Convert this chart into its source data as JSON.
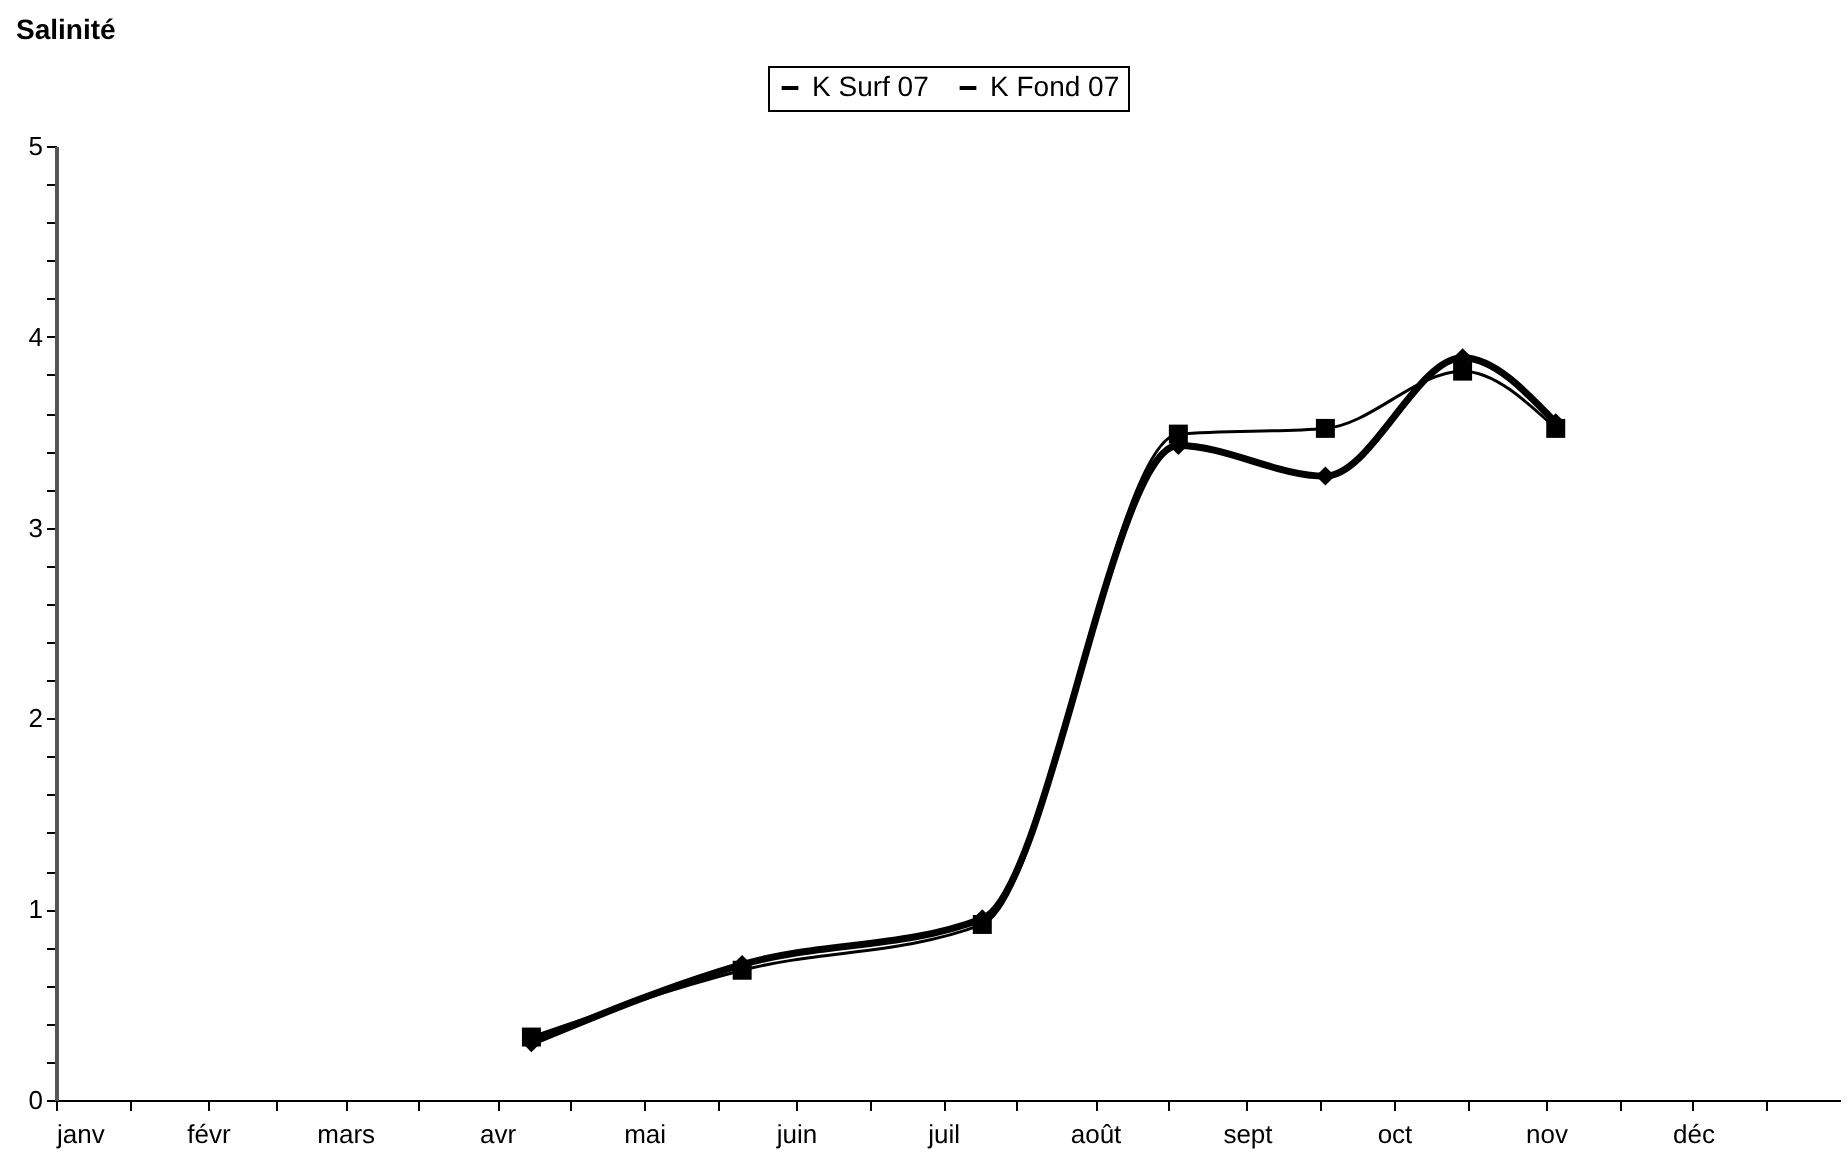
{
  "chart_data": {
    "type": "line",
    "title": "Salinité",
    "x": [
      "--04-08",
      "--05-21",
      "--07-09",
      "--08-18",
      "--09-17",
      "--10-15",
      "--11-03"
    ],
    "series": [
      {
        "name": "K Surf 07",
        "color": "#000000",
        "marker": "diamond",
        "values": [
          0.3,
          0.71,
          0.95,
          3.43,
          3.27,
          3.89,
          3.55
        ]
      },
      {
        "name": "K Fond 07",
        "color": "#000000",
        "marker": "square",
        "values": [
          0.33,
          0.68,
          0.92,
          3.49,
          3.52,
          3.82,
          3.52
        ]
      }
    ],
    "xlim": [
      "--01-01",
      "--12-31"
    ],
    "xticks": [
      {
        "value": "--01-01",
        "label": "janv"
      },
      {
        "value": "--01-16",
        "label": null
      },
      {
        "value": "--02-01",
        "label": "févr"
      },
      {
        "value": "--02-15",
        "label": null
      },
      {
        "value": "--03-01",
        "label": "mars"
      },
      {
        "value": "--03-16",
        "label": null
      },
      {
        "value": "--04-01",
        "label": "avr"
      },
      {
        "value": "--04-16",
        "label": null
      },
      {
        "value": "--05-01",
        "label": "mai"
      },
      {
        "value": "--05-16",
        "label": null
      },
      {
        "value": "--06-01",
        "label": "juin"
      },
      {
        "value": "--06-16",
        "label": null
      },
      {
        "value": "--07-01",
        "label": "juil"
      },
      {
        "value": "--07-16",
        "label": null
      },
      {
        "value": "--08-01",
        "label": "août"
      },
      {
        "value": "--08-16",
        "label": null
      },
      {
        "value": "--09-01",
        "label": "sept"
      },
      {
        "value": "--09-16",
        "label": null
      },
      {
        "value": "--10-01",
        "label": "oct"
      },
      {
        "value": "--10-16",
        "label": null
      },
      {
        "value": "--11-01",
        "label": "nov"
      },
      {
        "value": "--11-16",
        "label": null
      },
      {
        "value": "--12-01",
        "label": "déc"
      },
      {
        "value": "--12-16",
        "label": null
      }
    ],
    "ylim": [
      0,
      5
    ],
    "yticks": [
      0,
      {
        "value": 0.2,
        "label": null
      },
      {
        "value": 0.4,
        "label": null
      },
      {
        "value": 0.6,
        "label": null
      },
      {
        "value": 0.8,
        "label": null
      },
      1,
      {
        "value": 1.2,
        "label": null
      },
      {
        "value": 1.4,
        "label": null
      },
      {
        "value": 1.6,
        "label": null
      },
      {
        "value": 1.8,
        "label": null
      },
      2,
      {
        "value": 2.2,
        "label": null
      },
      {
        "value": 2.4,
        "label": null
      },
      {
        "value": 2.6,
        "label": null
      },
      {
        "value": 2.8,
        "label": null
      },
      3,
      {
        "value": 3.2,
        "label": null
      },
      {
        "value": 3.4,
        "label": null
      },
      {
        "value": 3.6,
        "label": null
      },
      {
        "value": 3.8,
        "label": null
      },
      4,
      {
        "value": 4.2,
        "label": null
      },
      {
        "value": 4.4,
        "label": null
      },
      {
        "value": 4.6,
        "label": null
      },
      {
        "value": 4.8,
        "label": null
      },
      5
    ],
    "legend": "top",
    "line_style": "solid"
  }
}
